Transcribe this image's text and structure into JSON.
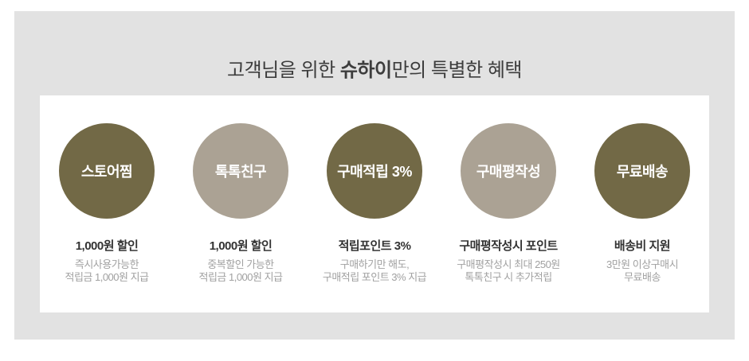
{
  "title": {
    "prefix": "고객님을 위한 ",
    "brand": "슈하이",
    "suffix": "만의 특별한 혜택"
  },
  "colors": {
    "page_bg": "#ffffff",
    "panel_bg": "#e2e2e2",
    "card_bg": "#ffffff",
    "circle_dark": "#726946",
    "circle_light": "#aba294",
    "title_color": "#3d3d3d",
    "heading_color": "#333333",
    "desc_color": "#a1a1a1",
    "circle_text": "#ffffff"
  },
  "benefits": [
    {
      "circle_label": "스토어찜",
      "circle_style": "dark",
      "heading": "1,000원 할인",
      "desc_line1": "즉시사용가능한",
      "desc_line2": "적립금 1,000원 지급"
    },
    {
      "circle_label": "톡톡친구",
      "circle_style": "light",
      "heading": "1,000원 할인",
      "desc_line1": "중복할인 가능한",
      "desc_line2": "적립금 1,000원 지급"
    },
    {
      "circle_label": "구매적립 3%",
      "circle_style": "dark",
      "heading": "적립포인트 3%",
      "desc_line1": "구매하기만 해도,",
      "desc_line2": "구매적립 포인트 3% 지급"
    },
    {
      "circle_label": "구매평작성",
      "circle_style": "light",
      "heading": "구매평작성시 포인트",
      "desc_line1": "구매평작성시 최대 250원",
      "desc_line2": "톡톡친구 시 추가적립"
    },
    {
      "circle_label": "무료배송",
      "circle_style": "dark",
      "heading": "배송비 지원",
      "desc_line1": "3만원 이상구매시",
      "desc_line2": "무료배송"
    }
  ]
}
